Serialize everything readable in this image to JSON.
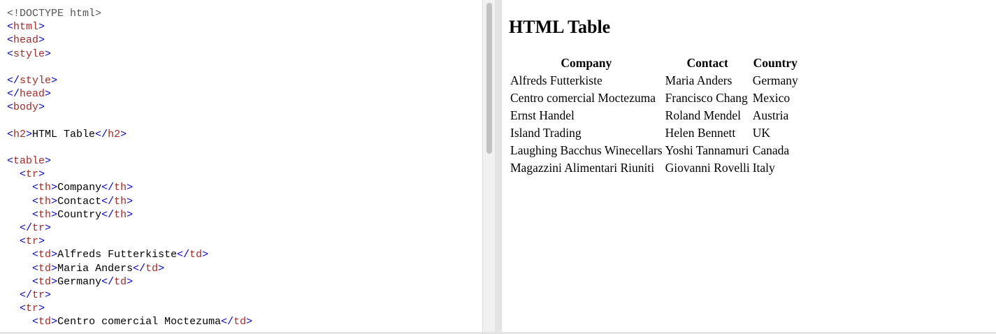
{
  "editor": {
    "lines": [
      [
        {
          "t": "doctype",
          "v": "<!DOCTYPE html>"
        }
      ],
      [
        {
          "t": "bracket",
          "v": "<"
        },
        {
          "t": "tag",
          "v": "html"
        },
        {
          "t": "bracket",
          "v": ">"
        }
      ],
      [
        {
          "t": "bracket",
          "v": "<"
        },
        {
          "t": "tag",
          "v": "head"
        },
        {
          "t": "bracket",
          "v": ">"
        }
      ],
      [
        {
          "t": "bracket",
          "v": "<"
        },
        {
          "t": "tag",
          "v": "style"
        },
        {
          "t": "bracket",
          "v": ">"
        }
      ],
      [],
      [
        {
          "t": "bracket",
          "v": "</"
        },
        {
          "t": "tag",
          "v": "style"
        },
        {
          "t": "bracket",
          "v": ">"
        }
      ],
      [
        {
          "t": "bracket",
          "v": "</"
        },
        {
          "t": "tag",
          "v": "head"
        },
        {
          "t": "bracket",
          "v": ">"
        }
      ],
      [
        {
          "t": "bracket",
          "v": "<"
        },
        {
          "t": "tag",
          "v": "body"
        },
        {
          "t": "bracket",
          "v": ">"
        }
      ],
      [],
      [
        {
          "t": "bracket",
          "v": "<"
        },
        {
          "t": "tag",
          "v": "h2"
        },
        {
          "t": "bracket",
          "v": ">"
        },
        {
          "t": "text",
          "v": "HTML Table"
        },
        {
          "t": "bracket",
          "v": "</"
        },
        {
          "t": "tag",
          "v": "h2"
        },
        {
          "t": "bracket",
          "v": ">"
        }
      ],
      [],
      [
        {
          "t": "bracket",
          "v": "<"
        },
        {
          "t": "tag",
          "v": "table"
        },
        {
          "t": "bracket",
          "v": ">"
        }
      ],
      [
        {
          "t": "text",
          "v": "  "
        },
        {
          "t": "bracket",
          "v": "<"
        },
        {
          "t": "tag",
          "v": "tr"
        },
        {
          "t": "bracket",
          "v": ">"
        }
      ],
      [
        {
          "t": "text",
          "v": "    "
        },
        {
          "t": "bracket",
          "v": "<"
        },
        {
          "t": "tag",
          "v": "th"
        },
        {
          "t": "bracket",
          "v": ">"
        },
        {
          "t": "text",
          "v": "Company"
        },
        {
          "t": "bracket",
          "v": "</"
        },
        {
          "t": "tag",
          "v": "th"
        },
        {
          "t": "bracket",
          "v": ">"
        }
      ],
      [
        {
          "t": "text",
          "v": "    "
        },
        {
          "t": "bracket",
          "v": "<"
        },
        {
          "t": "tag",
          "v": "th"
        },
        {
          "t": "bracket",
          "v": ">"
        },
        {
          "t": "text",
          "v": "Contact"
        },
        {
          "t": "bracket",
          "v": "</"
        },
        {
          "t": "tag",
          "v": "th"
        },
        {
          "t": "bracket",
          "v": ">"
        }
      ],
      [
        {
          "t": "text",
          "v": "    "
        },
        {
          "t": "bracket",
          "v": "<"
        },
        {
          "t": "tag",
          "v": "th"
        },
        {
          "t": "bracket",
          "v": ">"
        },
        {
          "t": "text",
          "v": "Country"
        },
        {
          "t": "bracket",
          "v": "</"
        },
        {
          "t": "tag",
          "v": "th"
        },
        {
          "t": "bracket",
          "v": ">"
        }
      ],
      [
        {
          "t": "text",
          "v": "  "
        },
        {
          "t": "bracket",
          "v": "</"
        },
        {
          "t": "tag",
          "v": "tr"
        },
        {
          "t": "bracket",
          "v": ">"
        }
      ],
      [
        {
          "t": "text",
          "v": "  "
        },
        {
          "t": "bracket",
          "v": "<"
        },
        {
          "t": "tag",
          "v": "tr"
        },
        {
          "t": "bracket",
          "v": ">"
        }
      ],
      [
        {
          "t": "text",
          "v": "    "
        },
        {
          "t": "bracket",
          "v": "<"
        },
        {
          "t": "tag",
          "v": "td"
        },
        {
          "t": "bracket",
          "v": ">"
        },
        {
          "t": "text",
          "v": "Alfreds Futterkiste"
        },
        {
          "t": "bracket",
          "v": "</"
        },
        {
          "t": "tag",
          "v": "td"
        },
        {
          "t": "bracket",
          "v": ">"
        }
      ],
      [
        {
          "t": "text",
          "v": "    "
        },
        {
          "t": "bracket",
          "v": "<"
        },
        {
          "t": "tag",
          "v": "td"
        },
        {
          "t": "bracket",
          "v": ">"
        },
        {
          "t": "text",
          "v": "Maria Anders"
        },
        {
          "t": "bracket",
          "v": "</"
        },
        {
          "t": "tag",
          "v": "td"
        },
        {
          "t": "bracket",
          "v": ">"
        }
      ],
      [
        {
          "t": "text",
          "v": "    "
        },
        {
          "t": "bracket",
          "v": "<"
        },
        {
          "t": "tag",
          "v": "td"
        },
        {
          "t": "bracket",
          "v": ">"
        },
        {
          "t": "text",
          "v": "Germany"
        },
        {
          "t": "bracket",
          "v": "</"
        },
        {
          "t": "tag",
          "v": "td"
        },
        {
          "t": "bracket",
          "v": ">"
        }
      ],
      [
        {
          "t": "text",
          "v": "  "
        },
        {
          "t": "bracket",
          "v": "</"
        },
        {
          "t": "tag",
          "v": "tr"
        },
        {
          "t": "bracket",
          "v": ">"
        }
      ],
      [
        {
          "t": "text",
          "v": "  "
        },
        {
          "t": "bracket",
          "v": "<"
        },
        {
          "t": "tag",
          "v": "tr"
        },
        {
          "t": "bracket",
          "v": ">"
        }
      ],
      [
        {
          "t": "text",
          "v": "    "
        },
        {
          "t": "bracket",
          "v": "<"
        },
        {
          "t": "tag",
          "v": "td"
        },
        {
          "t": "bracket",
          "v": ">"
        },
        {
          "t": "text",
          "v": "Centro comercial Moctezuma"
        },
        {
          "t": "bracket",
          "v": "</"
        },
        {
          "t": "tag",
          "v": "td"
        },
        {
          "t": "bracket",
          "v": ">"
        }
      ]
    ]
  },
  "result": {
    "title": "HTML Table",
    "table": {
      "headers": [
        "Company",
        "Contact",
        "Country"
      ],
      "rows": [
        [
          "Alfreds Futterkiste",
          "Maria Anders",
          "Germany"
        ],
        [
          "Centro comercial Moctezuma",
          "Francisco Chang",
          "Mexico"
        ],
        [
          "Ernst Handel",
          "Roland Mendel",
          "Austria"
        ],
        [
          "Island Trading",
          "Helen Bennett",
          "UK"
        ],
        [
          "Laughing Bacchus Winecellars",
          "Yoshi Tannamuri",
          "Canada"
        ],
        [
          "Magazzini Alimentari Riuniti",
          "Giovanni Rovelli",
          "Italy"
        ]
      ]
    }
  },
  "colors": {
    "tag": "#a52a2a",
    "bracket": "#0000cd",
    "doctype": "#555555",
    "text": "#000000"
  }
}
